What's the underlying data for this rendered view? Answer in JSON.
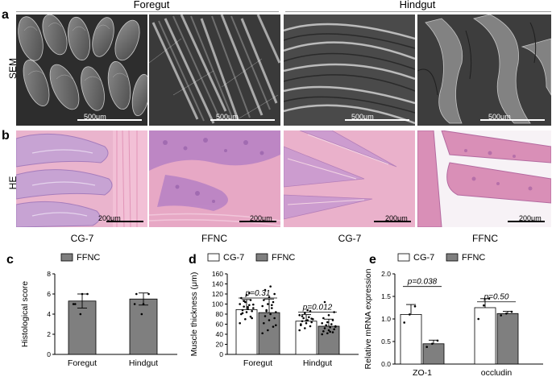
{
  "panel_letters": {
    "a": "a",
    "b": "b",
    "c": "c",
    "d": "d",
    "e": "e"
  },
  "groups": {
    "foregut": "Foregut",
    "hindgut": "Hindgut"
  },
  "row_labels": {
    "sem": "SEM",
    "he": "HE"
  },
  "sem_scalebars": [
    "500μm",
    "500μm",
    "500μm",
    "500μm"
  ],
  "he_scalebars": [
    "200μm",
    "200μm",
    "200μm",
    "200μm"
  ],
  "column_labels": [
    "CG-7",
    "FFNC",
    "CG-7",
    "FFNC"
  ],
  "colors": {
    "sem_dark": "#3a3a3a",
    "sem_light": "#b8b8b8",
    "he_pink": "#e8a8c4",
    "he_purple": "#b07ab8",
    "bar_white": "#ffffff",
    "bar_gray": "#7f7f7f"
  },
  "chart_data": [
    {
      "type": "bar",
      "panel": "c",
      "categories": [
        "Foregut",
        "Hindgut"
      ],
      "series": [
        {
          "name": "FFNC",
          "values": [
            5.3,
            5.5
          ],
          "errors": [
            0.7,
            0.6
          ]
        }
      ],
      "points": [
        [
          5,
          4,
          6,
          5,
          6
        ],
        [
          5,
          4,
          6,
          6,
          5
        ]
      ],
      "ylabel": "Histological score",
      "ylim": [
        0,
        8
      ],
      "yticks": [
        "0",
        "2",
        "4",
        "6",
        "8"
      ],
      "legend": "top"
    },
    {
      "type": "bar",
      "panel": "d",
      "categories": [
        "Foregut",
        "Hindgut"
      ],
      "series": [
        {
          "name": "CG-7",
          "values": [
            89,
            66
          ],
          "errors": [
            20,
            13
          ]
        },
        {
          "name": "FFNC",
          "values": [
            83,
            56
          ],
          "errors": [
            27,
            14
          ]
        }
      ],
      "points_cg7": [
        [
          62,
          70,
          75,
          80,
          84,
          86,
          88,
          90,
          92,
          95,
          98,
          100,
          104,
          108,
          112,
          118,
          72,
          82,
          94,
          99,
          106,
          122
        ],
        [
          48,
          52,
          56,
          60,
          62,
          64,
          66,
          68,
          70,
          72,
          74,
          78,
          82,
          86,
          58,
          67,
          71,
          76,
          88
        ]
      ],
      "points_ffnc": [
        [
          42,
          48,
          55,
          62,
          68,
          72,
          76,
          80,
          84,
          88,
          92,
          96,
          100,
          104,
          108,
          114,
          120,
          128,
          135,
          58,
          86,
          98
        ],
        [
          40,
          42,
          44,
          46,
          48,
          50,
          52,
          54,
          56,
          58,
          60,
          62,
          64,
          68,
          72,
          78,
          84,
          104,
          45,
          55
        ]
      ],
      "ylabel": "Muscle thickness (μm)",
      "ylim": [
        0,
        160
      ],
      "yticks": [
        "0",
        "20",
        "40",
        "60",
        "80",
        "100",
        "120",
        "140",
        "160"
      ],
      "annotations": [
        "p=0.31",
        "p=0.012"
      ],
      "legend": "top"
    },
    {
      "type": "bar",
      "panel": "e",
      "categories": [
        "ZO-1",
        "occludin"
      ],
      "series": [
        {
          "name": "CG-7",
          "values": [
            1.1,
            1.25
          ],
          "errors": [
            0.22,
            0.2
          ]
        },
        {
          "name": "FFNC",
          "values": [
            0.45,
            1.12
          ],
          "errors": [
            0.08,
            0.05
          ]
        }
      ],
      "points_cg7": [
        [
          0.92,
          1.1,
          1.28
        ],
        [
          1.0,
          1.3,
          1.45
        ]
      ],
      "points_ffnc": [
        [
          0.38,
          0.45,
          0.52
        ],
        [
          1.08,
          1.12,
          1.16
        ]
      ],
      "ylabel": "Relative mRNA expression",
      "ylim": [
        0,
        2.0
      ],
      "yticks": [
        "0.0",
        "0.5",
        "1.0",
        "1.5",
        "2.0"
      ],
      "annotations": [
        "p=0.038",
        "p=0.50"
      ],
      "legend": "top"
    }
  ]
}
